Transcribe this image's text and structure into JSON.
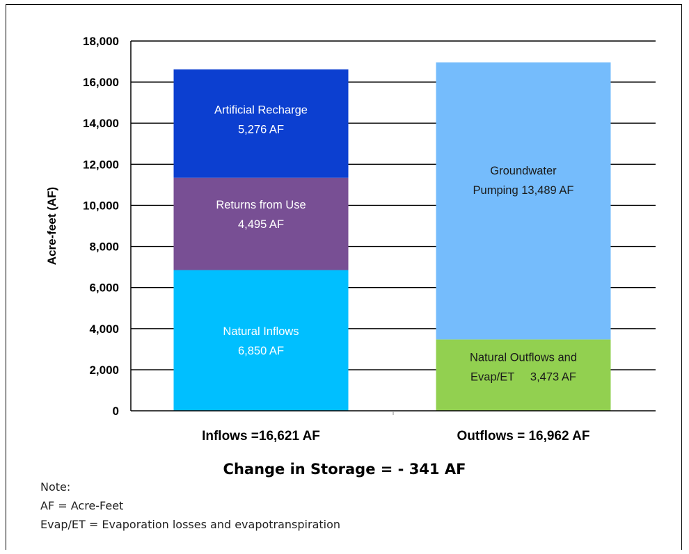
{
  "chart_data": {
    "type": "bar",
    "stacked": true,
    "ylabel": "Acre-feet (AF)",
    "ylim": [
      0,
      18000
    ],
    "yticks": [
      0,
      2000,
      4000,
      6000,
      8000,
      10000,
      12000,
      14000,
      16000,
      18000
    ],
    "ytick_labels": [
      "0",
      "2,000",
      "4,000",
      "6,000",
      "8,000",
      "10,000",
      "12,000",
      "14,000",
      "16,000",
      "18,000"
    ],
    "grid": true,
    "categories": [
      "Inflows =16,621 AF",
      "Outflows = 16,962 AF"
    ],
    "bars": [
      {
        "category": "Inflows =16,621 AF",
        "segments": [
          {
            "value": 6850,
            "label_lines": [
              "Natural Inflows",
              "6,850 AF"
            ],
            "color": "#00bfff",
            "text_color": "#ffffff"
          },
          {
            "value": 4495,
            "label_lines": [
              "Returns from Use",
              "4,495 AF"
            ],
            "color": "#784f94",
            "text_color": "#ffffff"
          },
          {
            "value": 5276,
            "label_lines": [
              "Artificial Recharge",
              "5,276 AF"
            ],
            "color": "#0c3fd0",
            "text_color": "#ffffff"
          }
        ]
      },
      {
        "category": "Outflows = 16,962 AF",
        "segments": [
          {
            "value": 3473,
            "label_lines": [
              "Natural Outflows and",
              "Evap/ET     3,473 AF"
            ],
            "color": "#92d050",
            "text_color": "#1a1a1a"
          },
          {
            "value": 13489,
            "label_lines": [
              "Groundwater",
              "Pumping 13,489 AF"
            ],
            "color": "#75bcfc",
            "text_color": "#1a1a1a"
          }
        ]
      }
    ]
  },
  "summary": "Change in Storage = - 341 AF",
  "notes": {
    "heading": "Note:",
    "line1": "AF = Acre-Feet",
    "line2": "Evap/ET = Evaporation losses and evapotranspiration"
  }
}
